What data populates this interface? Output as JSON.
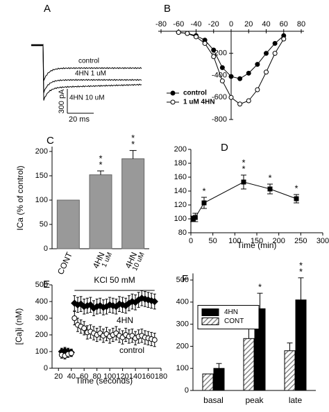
{
  "chart_data": [
    {
      "type": "traces",
      "panel": "A",
      "series": [
        {
          "name": "control"
        },
        {
          "name": "4HN 1 uM"
        },
        {
          "name": "4HN 10 uM"
        }
      ],
      "scale_bar": {
        "y": "300 pA",
        "x": "20 ms"
      }
    },
    {
      "type": "line",
      "panel": "B",
      "x": [
        -60,
        -50,
        -40,
        -30,
        -20,
        -10,
        0,
        10,
        20,
        30,
        40,
        50,
        60
      ],
      "series": [
        {
          "name": "control",
          "color": "#000000",
          "marker": "filled",
          "values": [
            -10,
            -20,
            -40,
            -80,
            -170,
            -330,
            -410,
            -430,
            -380,
            -300,
            -200,
            -110,
            -40
          ]
        },
        {
          "name": "1 uM 4HN",
          "color": "#000000",
          "marker": "open",
          "values": [
            -10,
            -20,
            -50,
            -110,
            -230,
            -450,
            -600,
            -660,
            -630,
            -530,
            -370,
            -200,
            -70
          ]
        }
      ],
      "xlim": [
        -80,
        80
      ],
      "xticks": [
        -80,
        -60,
        -40,
        -20,
        0,
        20,
        40,
        60,
        80
      ],
      "ylim": [
        -800,
        0
      ],
      "yticks": [
        -800,
        -600,
        -400,
        -200
      ],
      "legend": "lower left"
    },
    {
      "type": "bar",
      "panel": "C",
      "categories": [
        "CONT",
        "4HN",
        "4HN"
      ],
      "sublabels": [
        null,
        "1 uM",
        "10 uM"
      ],
      "values": [
        100,
        152,
        185
      ],
      "errors": [
        null,
        8,
        17
      ],
      "color": "#999999",
      "ylabel": "ICa (% of control)",
      "ylim": [
        0,
        210
      ],
      "yticks": [
        0,
        50,
        100,
        150,
        200
      ],
      "annotations": [
        {
          "index": 1,
          "labels": [
            "*",
            "*"
          ]
        },
        {
          "index": 2,
          "labels": [
            "*",
            "*"
          ]
        }
      ]
    },
    {
      "type": "errorline",
      "panel": "D",
      "x": [
        5,
        10,
        30,
        120,
        180,
        240
      ],
      "values": [
        100,
        102,
        123,
        153,
        143,
        129
      ],
      "errors": [
        4,
        6,
        8,
        10,
        7,
        6
      ],
      "color": "#000000",
      "xlabel": "Time (min)",
      "xlim": [
        0,
        300
      ],
      "xticks": [
        0,
        50,
        100,
        150,
        200,
        250,
        300
      ],
      "ylim": [
        80,
        200
      ],
      "yticks": [
        80,
        100,
        120,
        140,
        160,
        180,
        200
      ],
      "annotations": [
        {
          "index": 2,
          "labels": [
            "*"
          ]
        },
        {
          "index": 3,
          "labels": [
            "*",
            "*"
          ]
        },
        {
          "index": 4,
          "labels": [
            "*"
          ]
        },
        {
          "index": 5,
          "labels": [
            "*"
          ]
        }
      ]
    },
    {
      "type": "scatter",
      "panel": "E",
      "x": [
        25,
        30,
        35,
        40,
        45,
        50,
        55,
        60,
        65,
        70,
        75,
        80,
        85,
        90,
        95,
        100,
        105,
        110,
        115,
        120,
        125,
        130,
        135,
        140,
        145,
        150,
        155,
        160,
        165,
        170
      ],
      "series": [
        {
          "name": "4HN",
          "color": "#000000",
          "marker": "diamond",
          "values": [
            100,
            105,
            100,
            95,
            390,
            380,
            385,
            370,
            375,
            380,
            360,
            370,
            375,
            365,
            370,
            380,
            375,
            370,
            385,
            380,
            375,
            390,
            400,
            395,
            410,
            420,
            415,
            410,
            405,
            400
          ],
          "errors": [
            20,
            20,
            20,
            20,
            45,
            45,
            45,
            45,
            45,
            45,
            45,
            45,
            45,
            45,
            45,
            45,
            45,
            45,
            45,
            45,
            45,
            45,
            45,
            45,
            45,
            45,
            45,
            45,
            45,
            45
          ]
        },
        {
          "name": "control",
          "color": "#000000",
          "marker": "open",
          "values": [
            80,
            75,
            85,
            90,
            300,
            260,
            250,
            240,
            215,
            220,
            210,
            200,
            210,
            195,
            205,
            190,
            200,
            210,
            195,
            185,
            200,
            190,
            195,
            180,
            190,
            195,
            185,
            180,
            175,
            170
          ],
          "errors": [
            20,
            20,
            20,
            20,
            40,
            40,
            40,
            40,
            40,
            40,
            40,
            40,
            40,
            40,
            40,
            40,
            40,
            40,
            40,
            40,
            40,
            40,
            40,
            40,
            40,
            40,
            40,
            40,
            40,
            40
          ]
        }
      ],
      "xlabel": "Time (seconds)",
      "ylabel": "[Ca]i (nM)",
      "xlim": [
        10,
        180
      ],
      "xticks": [
        20,
        40,
        60,
        80,
        100,
        120,
        140,
        160,
        180
      ],
      "ylim": [
        0,
        500
      ],
      "yticks": [
        0,
        100,
        200,
        300,
        400,
        500
      ],
      "stimulus": {
        "label": "KCl 50 mM",
        "start": 45,
        "end": 170
      }
    },
    {
      "type": "groupbar",
      "panel": "F",
      "categories": [
        "basal",
        "peak",
        "late"
      ],
      "series": [
        {
          "name": "4HN",
          "color": "#000000",
          "values": [
            100,
            370,
            410
          ],
          "errors": [
            22,
            70,
            100
          ]
        },
        {
          "name": "CONT",
          "color": "#999999",
          "pattern": "hatch",
          "values": [
            75,
            235,
            180
          ],
          "errors": [
            null,
            55,
            35
          ]
        }
      ],
      "ylim": [
        0,
        530
      ],
      "yticks": [
        0,
        100,
        200,
        300,
        400,
        500
      ],
      "legend": "upper left",
      "annotations": [
        {
          "index": 1,
          "series": 0,
          "labels": [
            "*"
          ]
        },
        {
          "index": 2,
          "series": 0,
          "labels": [
            "*",
            "*"
          ]
        }
      ]
    }
  ]
}
